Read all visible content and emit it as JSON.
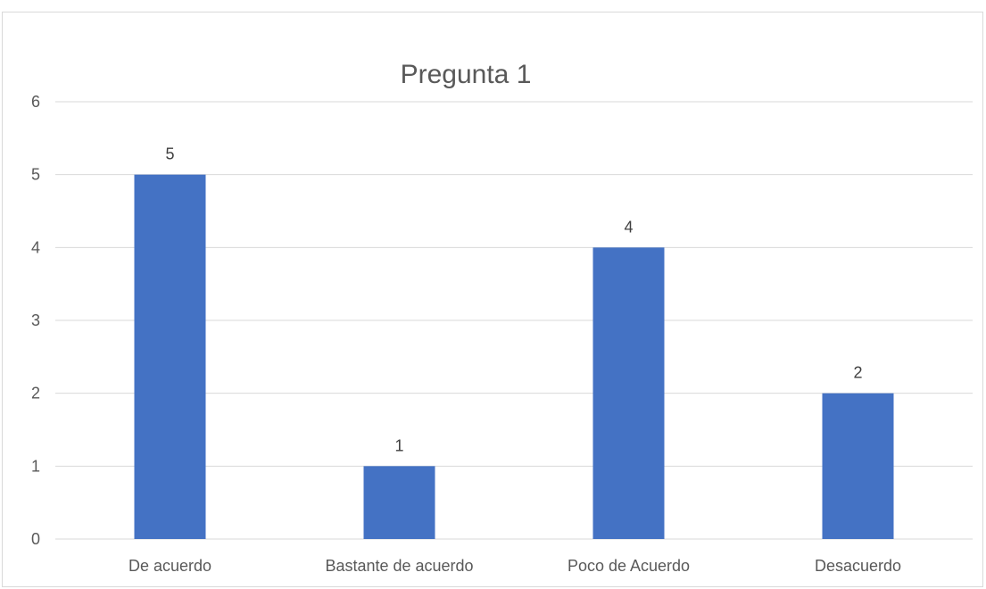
{
  "chart_data": {
    "type": "bar",
    "title": "Pregunta 1",
    "categories": [
      "De acuerdo",
      "Bastante de acuerdo",
      "Poco de Acuerdo",
      "Desacuerdo"
    ],
    "values": [
      5,
      1,
      4,
      2
    ],
    "data_labels": [
      "5",
      "1",
      "4",
      "2"
    ],
    "xlabel": "",
    "ylabel": "",
    "ylim": [
      0,
      6
    ],
    "yticks": [
      "0",
      "1",
      "2",
      "3",
      "4",
      "5",
      "6"
    ],
    "grid": true,
    "legend": "none",
    "bar_color": "#4472C4"
  }
}
